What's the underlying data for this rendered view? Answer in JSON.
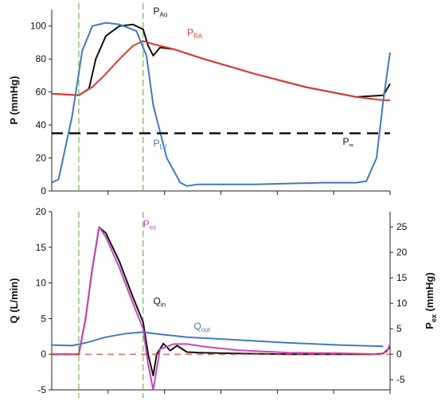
{
  "chart_data": [
    {
      "type": "line",
      "ylabel": "P (mmHg)",
      "ylim": [
        0,
        110
      ],
      "yticks": [
        "0",
        "20",
        "40",
        "60",
        "80",
        "100"
      ],
      "xlim": [
        0,
        1
      ],
      "x_tick_labels": "none",
      "grid": false,
      "legend": "none",
      "series": [
        {
          "name": "P_Ao",
          "color": "#111111",
          "x": [
            0,
            0.08,
            0.11,
            0.13,
            0.16,
            0.2,
            0.24,
            0.27,
            0.285,
            0.3,
            0.32,
            0.36,
            0.45,
            0.6,
            0.75,
            0.9,
            0.98,
            1.0
          ],
          "y": [
            59,
            58,
            62,
            80,
            94,
            100,
            101,
            98,
            88,
            82,
            87,
            86,
            80,
            71,
            63,
            57,
            58,
            65
          ]
        },
        {
          "name": "P_RA",
          "color": "#e03a2c",
          "x": [
            0,
            0.08,
            0.12,
            0.16,
            0.2,
            0.24,
            0.27,
            0.3,
            0.36,
            0.45,
            0.6,
            0.75,
            0.9,
            0.98,
            1.0
          ],
          "y": [
            59,
            58,
            63,
            71,
            80,
            88,
            91,
            89,
            86,
            80,
            71,
            63,
            57,
            55,
            55
          ]
        },
        {
          "name": "P_LV",
          "color": "#3f7ac0",
          "x": [
            0,
            0.02,
            0.06,
            0.09,
            0.12,
            0.16,
            0.2,
            0.25,
            0.28,
            0.3,
            0.34,
            0.38,
            0.4,
            0.43,
            0.6,
            0.8,
            0.9,
            0.93,
            0.96,
            0.98,
            1.0
          ],
          "y": [
            5,
            7,
            45,
            85,
            100,
            102,
            101,
            97,
            82,
            52,
            20,
            5,
            3,
            4,
            4,
            5,
            5,
            6,
            20,
            55,
            84
          ]
        },
        {
          "name": "P∞",
          "color": "#111111",
          "style": "dashed",
          "x": [
            0,
            1
          ],
          "y": [
            35,
            35
          ]
        }
      ],
      "annotations": [
        {
          "text": "P",
          "sub": "Ao",
          "color": "#111111",
          "x": 0.3,
          "y": 107
        },
        {
          "text": "P",
          "sub": "RA",
          "color": "#e03a2c",
          "x": 0.4,
          "y": 94
        },
        {
          "text": "P",
          "sub": "LV",
          "color": "#3f7ac0",
          "x": 0.3,
          "y": 27
        },
        {
          "text": "P",
          "sub": "∞",
          "color": "#111111",
          "x": 0.86,
          "y": 28
        }
      ],
      "vlines_x": [
        0.08,
        0.27
      ]
    },
    {
      "type": "line",
      "ylabel": "Q (L/min)",
      "ylim": [
        -5,
        20
      ],
      "yticks": [
        "-5",
        "0",
        "5",
        "10",
        "15",
        "20"
      ],
      "y2label": "P_ex (mmHg)",
      "y2lim": [
        -7,
        28
      ],
      "y2ticks": [
        "-5",
        "0",
        "5",
        "10",
        "15",
        "20",
        "25"
      ],
      "xlim": [
        0,
        1
      ],
      "x_tick_labels": "none",
      "grid": false,
      "legend": "none",
      "series": [
        {
          "name": "Q_in",
          "color": "#111111",
          "x": [
            0,
            0.08,
            0.1,
            0.12,
            0.14,
            0.16,
            0.2,
            0.24,
            0.27,
            0.285,
            0.3,
            0.31,
            0.33,
            0.35,
            0.37,
            0.4,
            0.45,
            0.55,
            0.7,
            0.85,
            0.95,
            0.98,
            1.0
          ],
          "y": [
            0,
            0,
            5,
            12,
            17.8,
            17,
            13,
            8,
            4.5,
            0,
            -3,
            0,
            1.5,
            0.5,
            1.2,
            0.3,
            0.2,
            0.1,
            0,
            0,
            0,
            0.1,
            1
          ]
        },
        {
          "name": "Q_out",
          "color": "#3f7ac0",
          "x": [
            0,
            0.06,
            0.1,
            0.16,
            0.22,
            0.27,
            0.32,
            0.4,
            0.55,
            0.7,
            0.85,
            0.98
          ],
          "y": [
            1.3,
            1.2,
            1.6,
            2.4,
            2.9,
            3.1,
            2.8,
            2.4,
            2.0,
            1.6,
            1.3,
            1.1
          ]
        },
        {
          "name": "P_ex",
          "color": "#c24ab8",
          "axis": "y2",
          "x": [
            0,
            0.08,
            0.1,
            0.12,
            0.14,
            0.16,
            0.2,
            0.24,
            0.27,
            0.285,
            0.3,
            0.32,
            0.36,
            0.4,
            0.45,
            0.55,
            0.7,
            0.85,
            0.97,
            0.99,
            1.0
          ],
          "y": [
            0,
            0,
            7,
            17,
            25,
            23,
            17,
            10,
            5,
            -2,
            -7,
            1,
            2,
            2,
            1.5,
            0.8,
            0.3,
            0.2,
            0,
            0.5,
            2
          ]
        },
        {
          "name": "zero",
          "color": "#e03a2c",
          "style": "dashed",
          "x": [
            0,
            1
          ],
          "y": [
            0,
            0
          ]
        }
      ],
      "annotations": [
        {
          "text": "P",
          "sub": "ex",
          "color": "#c24ab8",
          "x": 0.27,
          "y": 17.8
        },
        {
          "text": "Q",
          "sub": "in",
          "color": "#111111",
          "x": 0.3,
          "y": 7
        },
        {
          "text": "Q",
          "sub": "out",
          "color": "#3f7ac0",
          "x": 0.42,
          "y": 3.5
        }
      ],
      "vlines_x": [
        0.08,
        0.27
      ]
    }
  ]
}
